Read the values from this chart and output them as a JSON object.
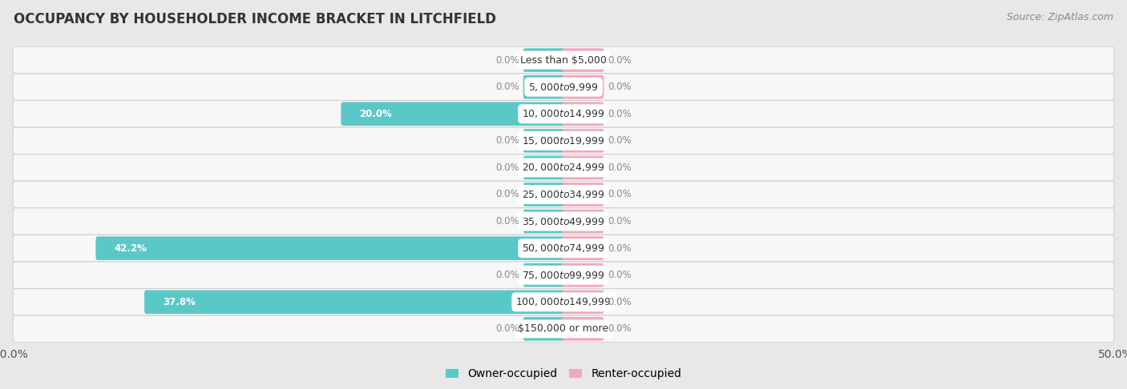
{
  "title": "OCCUPANCY BY HOUSEHOLDER INCOME BRACKET IN LITCHFIELD",
  "source": "Source: ZipAtlas.com",
  "categories": [
    "Less than $5,000",
    "$5,000 to $9,999",
    "$10,000 to $14,999",
    "$15,000 to $19,999",
    "$20,000 to $24,999",
    "$25,000 to $34,999",
    "$35,000 to $49,999",
    "$50,000 to $74,999",
    "$75,000 to $99,999",
    "$100,000 to $149,999",
    "$150,000 or more"
  ],
  "owner_values": [
    0.0,
    0.0,
    20.0,
    0.0,
    0.0,
    0.0,
    0.0,
    42.2,
    0.0,
    37.8,
    0.0
  ],
  "renter_values": [
    0.0,
    0.0,
    0.0,
    0.0,
    0.0,
    0.0,
    0.0,
    0.0,
    0.0,
    0.0,
    0.0
  ],
  "owner_color": "#5BC8C8",
  "renter_color": "#F4A7B9",
  "xlim": 50.0,
  "stub_size": 3.5,
  "background_color": "#e8e8e8",
  "row_color": "#f7f7f7",
  "row_border_color": "#d0d0d0",
  "label_bg_color": "#ffffff",
  "zero_label_color": "#888888",
  "title_fontsize": 12,
  "source_fontsize": 9,
  "cat_fontsize": 9,
  "val_fontsize": 8.5,
  "legend_fontsize": 10,
  "axis_fontsize": 10
}
